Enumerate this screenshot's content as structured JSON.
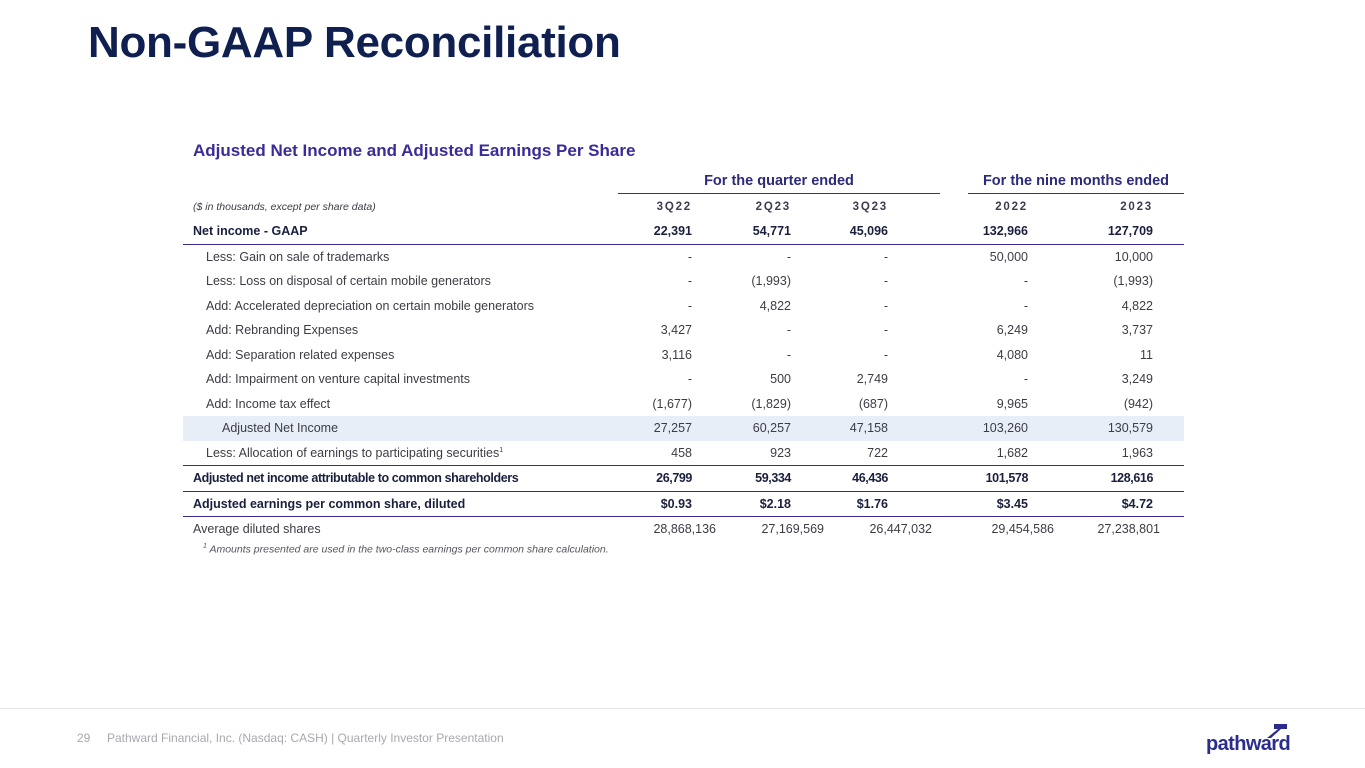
{
  "title": "Non-GAAP Reconciliation",
  "subtitle": "Adjusted Net Income and Adjusted Earnings Per Share",
  "group_headers": {
    "quarter": "For the quarter ended",
    "nine_months": "For the nine months ended"
  },
  "units_note": "($ in thousands, except per share data)",
  "columns": [
    "3Q22",
    "2Q23",
    "3Q23",
    "2022",
    "2023"
  ],
  "rows": [
    {
      "label": "Net income - GAAP",
      "values": [
        "22,391",
        "54,771",
        "45,096",
        "132,966",
        "127,709"
      ]
    },
    {
      "label": "Less: Gain on sale of trademarks",
      "values": [
        "-",
        "-",
        "-",
        "50,000",
        "10,000"
      ]
    },
    {
      "label": "Less: Loss on disposal of certain mobile generators",
      "values": [
        "-",
        "(1,993)",
        "-",
        "-",
        "(1,993)"
      ]
    },
    {
      "label": "Add: Accelerated depreciation on certain mobile generators",
      "values": [
        "-",
        "4,822",
        "-",
        "-",
        "4,822"
      ]
    },
    {
      "label": "Add: Rebranding Expenses",
      "values": [
        "3,427",
        "-",
        "-",
        "6,249",
        "3,737"
      ]
    },
    {
      "label": "Add: Separation related expenses",
      "values": [
        "3,116",
        "-",
        "-",
        "4,080",
        "11"
      ]
    },
    {
      "label": "Add: Impairment on venture capital investments",
      "values": [
        "-",
        "500",
        "2,749",
        "-",
        "3,249"
      ]
    },
    {
      "label": "Add: Income tax effect",
      "values": [
        "(1,677)",
        "(1,829)",
        "(687)",
        "9,965",
        "(942)"
      ]
    },
    {
      "label": "Adjusted Net Income",
      "values": [
        "27,257",
        "60,257",
        "47,158",
        "103,260",
        "130,579"
      ]
    },
    {
      "label": "Less: Allocation of earnings to participating securities",
      "label_sup": "1",
      "values": [
        "458",
        "923",
        "722",
        "1,682",
        "1,963"
      ]
    },
    {
      "label": "Adjusted net income attributable to common shareholders",
      "values": [
        "26,799",
        "59,334",
        "46,436",
        "101,578",
        "128,616"
      ]
    },
    {
      "label": "Adjusted earnings per common share, diluted",
      "values": [
        "$0.93",
        "$2.18",
        "$1.76",
        "$3.45",
        "$4.72"
      ]
    },
    {
      "label": "Average diluted shares",
      "values": [
        "28,868,136",
        "27,169,569",
        "26,447,032",
        "29,454,586",
        "27,238,801"
      ]
    }
  ],
  "footnote": {
    "marker": "1",
    "text": "Amounts presented are used in the two-class earnings per common share calculation."
  },
  "footer": {
    "page_number": "29",
    "text": "Pathward Financial, Inc. (Nasdaq: CASH) | Quarterly Investor Presentation",
    "logo_text": "pathward"
  },
  "colors": {
    "title": "#0f1f4f",
    "accent": "#3b2b9a",
    "shade": "#e7eef8"
  }
}
